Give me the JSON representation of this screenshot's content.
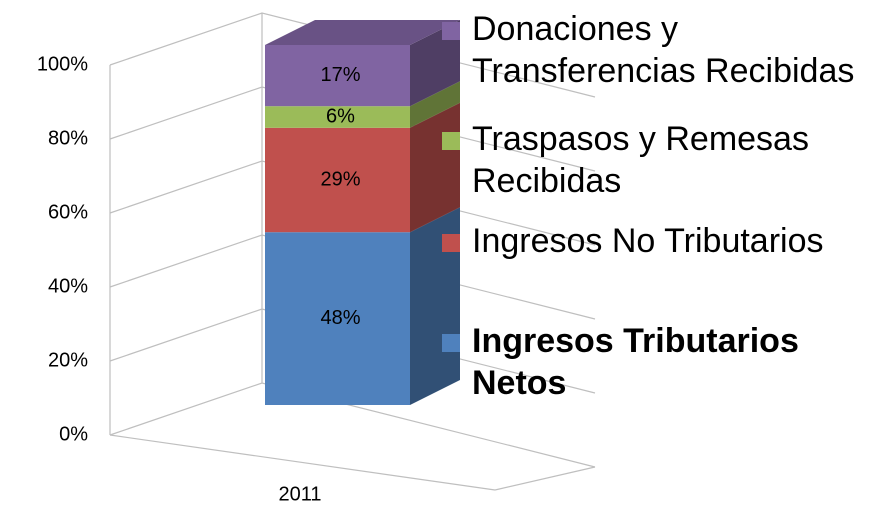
{
  "chart_data": {
    "type": "bar3d_stacked",
    "categories": [
      "2011"
    ],
    "series": [
      {
        "name": "Ingresos Tributarios Netos",
        "color": "#4f81bd",
        "values": [
          48
        ],
        "value_labels": [
          "48%"
        ]
      },
      {
        "name": "Ingresos No Tributarios",
        "color": "#c0504d",
        "values": [
          29
        ],
        "value_labels": [
          "29%"
        ]
      },
      {
        "name": "Traspasos y Remesas Recibidas",
        "color": "#9bbb59",
        "values": [
          6
        ],
        "value_labels": [
          "6%"
        ]
      },
      {
        "name": "Donaciones y Transferencias Recibidas",
        "color": "#8064a2",
        "values": [
          17
        ],
        "value_labels": [
          "17%"
        ]
      }
    ],
    "ylim": [
      0,
      100
    ],
    "yticks": [
      {
        "value": 0,
        "label": "0%"
      },
      {
        "value": 20,
        "label": "20%"
      },
      {
        "value": 40,
        "label": "40%"
      },
      {
        "value": 60,
        "label": "60%"
      },
      {
        "value": 80,
        "label": "80%"
      },
      {
        "value": 100,
        "label": "100%"
      }
    ],
    "grid": true
  }
}
